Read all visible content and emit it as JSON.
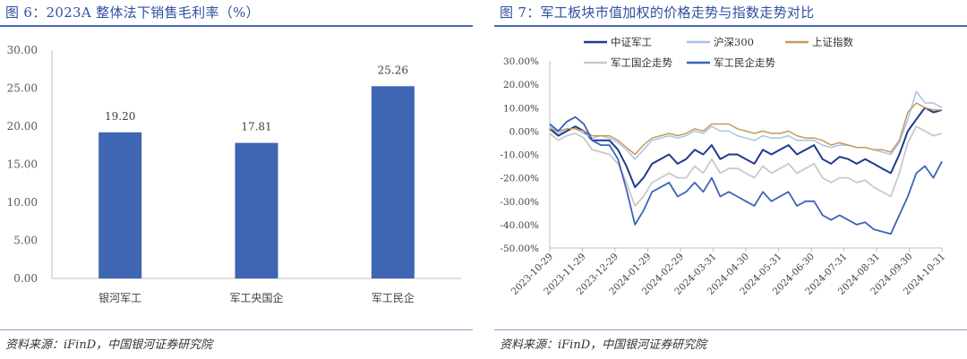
{
  "left": {
    "title": "图 6：2023A 整体法下销售毛利率（%）",
    "source": "资料来源：iFinD，中国银河证券研究院"
  },
  "right": {
    "title": "图 7：军工板块市值加权的价格走势与指数走势对比",
    "source": "资料来源：iFinD，中国银河证券研究院"
  },
  "chart_data": [
    {
      "type": "bar",
      "title": "图 6：2023A 整体法下销售毛利率（%）",
      "categories": [
        "银河军工",
        "军工央国企",
        "军工民企"
      ],
      "values": [
        19.2,
        17.81,
        25.26
      ],
      "value_labels": [
        "19.20",
        "17.81",
        "25.26"
      ],
      "ylim": [
        0,
        30
      ],
      "yticks": [
        "30.00",
        "25.00",
        "20.00",
        "15.00",
        "10.00",
        "5.00",
        "0.00"
      ],
      "color": "#3f66b3",
      "grid": false
    },
    {
      "type": "line",
      "title": "图 7：军工板块市值加权的价格走势与指数走势对比",
      "x_ticks": [
        "2023-10-29",
        "2023-11-29",
        "2023-12-29",
        "2024-01-29",
        "2024-02-29",
        "2024-03-31",
        "2024-04-30",
        "2024-05-31",
        "2024-06-30",
        "2024-07-31",
        "2024-08-31",
        "2024-09-30",
        "2024-10-31"
      ],
      "yticks": [
        "30.00%",
        "20.00%",
        "10.00%",
        "0.00%",
        "-10.00%",
        "-20.00%",
        "-30.00%",
        "-40.00%",
        "-50.00%"
      ],
      "ylim": [
        -50,
        30
      ],
      "legend_position": "top",
      "grid": false,
      "series": [
        {
          "name": "中证军工",
          "color": "#1f3a8f",
          "width": 2,
          "values": [
            1,
            -2,
            0,
            2,
            0,
            -4,
            -4,
            -4,
            -8,
            -15,
            -24,
            -20,
            -14,
            -12,
            -10,
            -14,
            -12,
            -8,
            -10,
            -6,
            -12,
            -10,
            -10,
            -12,
            -14,
            -8,
            -10,
            -8,
            -6,
            -10,
            -8,
            -6,
            -12,
            -14,
            -11,
            -12,
            -14,
            -12,
            -14,
            -16,
            -18,
            -10,
            0,
            5,
            10,
            8,
            9
          ]
        },
        {
          "name": "沪深300",
          "color": "#a9c2e8",
          "width": 1.5,
          "values": [
            2,
            -1,
            1,
            1,
            -1,
            -3,
            -2,
            -3,
            -5,
            -8,
            -12,
            -8,
            -4,
            -3,
            -2,
            -3,
            -2,
            0,
            -1,
            2,
            0,
            0,
            -2,
            -3,
            -4,
            -2,
            -3,
            -3,
            -2,
            -4,
            -4,
            -4,
            -6,
            -7,
            -6,
            -6,
            -7,
            -7,
            -8,
            -9,
            -10,
            -5,
            5,
            17,
            12,
            12,
            10
          ]
        },
        {
          "name": "上证指数",
          "color": "#c69a5a",
          "width": 1.5,
          "values": [
            1,
            0,
            1,
            1,
            0,
            -2,
            -2,
            -2,
            -4,
            -7,
            -10,
            -6,
            -3,
            -2,
            -1,
            -2,
            -1,
            1,
            0,
            3,
            3,
            3,
            1,
            0,
            -1,
            0,
            -1,
            -1,
            0,
            -2,
            -3,
            -3,
            -4,
            -6,
            -5,
            -6,
            -7,
            -7,
            -8,
            -8,
            -9,
            -4,
            8,
            12,
            10,
            9,
            9
          ]
        },
        {
          "name": "军工国企走势",
          "color": "#c9c9c9",
          "width": 1.8,
          "values": [
            -1,
            -4,
            -2,
            -1,
            -3,
            -8,
            -9,
            -10,
            -14,
            -22,
            -32,
            -28,
            -22,
            -20,
            -18,
            -20,
            -20,
            -15,
            -18,
            -12,
            -18,
            -16,
            -16,
            -18,
            -20,
            -15,
            -18,
            -16,
            -14,
            -18,
            -16,
            -14,
            -20,
            -22,
            -20,
            -20,
            -22,
            -21,
            -24,
            -26,
            -28,
            -18,
            -5,
            2,
            0,
            -2,
            -1
          ]
        },
        {
          "name": "军工民企走势",
          "color": "#3b63b8",
          "width": 1.8,
          "values": [
            3,
            0,
            4,
            6,
            3,
            -4,
            -6,
            -6,
            -12,
            -25,
            -40,
            -34,
            -26,
            -24,
            -22,
            -28,
            -26,
            -22,
            -26,
            -20,
            -28,
            -26,
            -28,
            -30,
            -32,
            -26,
            -30,
            -28,
            -26,
            -32,
            -30,
            -30,
            -36,
            -38,
            -36,
            -38,
            -40,
            -39,
            -42,
            -43,
            -44,
            -36,
            -28,
            -18,
            -15,
            -20,
            -13
          ]
        }
      ]
    }
  ]
}
